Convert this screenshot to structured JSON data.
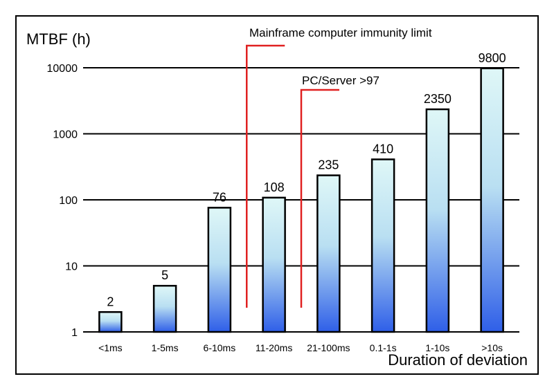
{
  "chart_data": {
    "type": "bar",
    "title": "",
    "ylabel": "MTBF (h)",
    "xlabel": "Duration of deviation",
    "yscale": "log",
    "ylim": [
      1,
      10000
    ],
    "yticks": [
      1,
      10,
      100,
      1000,
      10000
    ],
    "ytick_labels": [
      "1",
      "10",
      "100",
      "1000",
      "10000"
    ],
    "grid": "horizontal",
    "categories": [
      "<1ms",
      "1-5ms",
      "6-10ms",
      "11-20ms",
      "21-100ms",
      "0.1-1s",
      "1-10s",
      ">10s"
    ],
    "values": [
      2,
      5,
      76,
      108,
      235,
      410,
      2350,
      9800
    ],
    "data_labels": [
      "2",
      "5",
      "76",
      "108",
      "235",
      "410",
      "2350",
      "9800"
    ],
    "bar_gradient": [
      "#dff7f7",
      "#2f5fe8"
    ],
    "annotations": [
      {
        "text": "Mainframe computer immunity limit",
        "between_categories": [
          "6-10ms",
          "11-20ms"
        ],
        "color": "#e02020"
      },
      {
        "text": "PC/Server >97",
        "between_categories": [
          "11-20ms",
          "21-100ms"
        ],
        "color": "#e02020"
      }
    ]
  }
}
